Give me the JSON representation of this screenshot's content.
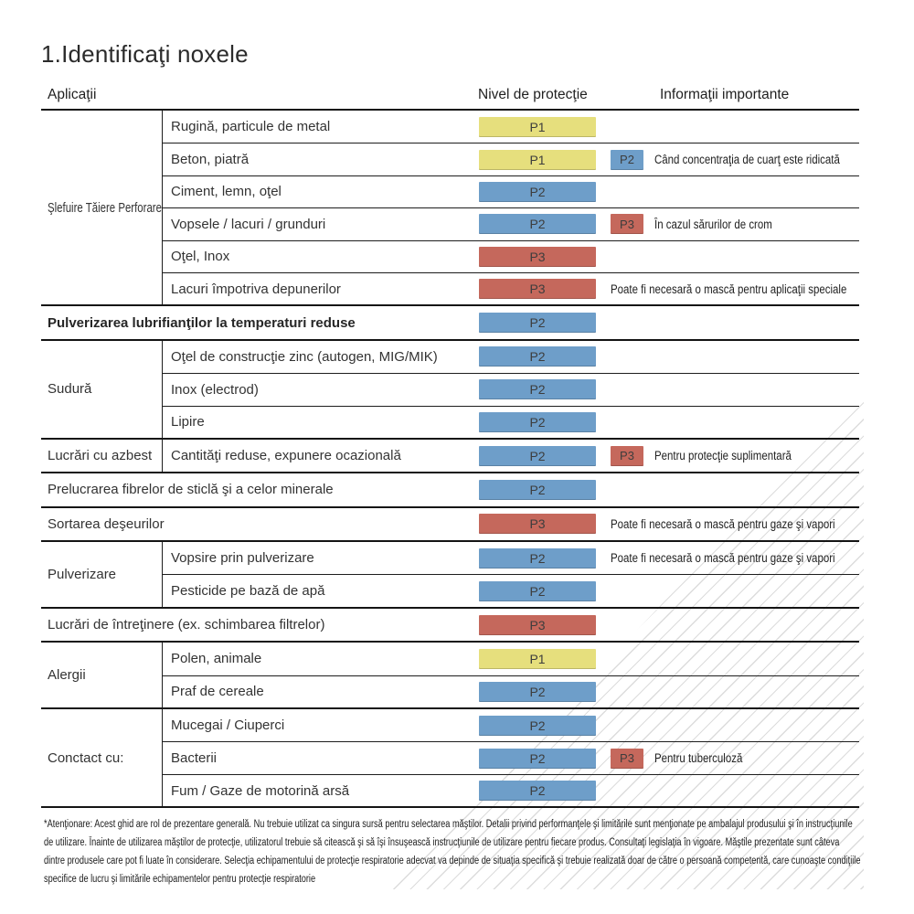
{
  "title": "1.Identificaţi noxele",
  "columns": {
    "applications": "Aplicaţii",
    "protection_level": "Nivel de protecţie",
    "important_info": "Informaţii importante"
  },
  "level_colors": {
    "P1": "#e6df7d",
    "P2": "#6e9ec9",
    "P3": "#c5685c"
  },
  "decor": {
    "hatch_color": "#dcdcdc"
  },
  "groups": [
    {
      "label": "Şlefuire\nTăiere\nPerforare",
      "rows": [
        {
          "item": "Rugină, particule de metal",
          "level": "P1"
        },
        {
          "item": "Beton, piatră",
          "level": "P1",
          "extra_level": "P2",
          "info": "Când concentraţia de cuarţ este ridicată"
        },
        {
          "item": "Ciment, lemn, oţel",
          "level": "P2"
        },
        {
          "item": "Vopsele / lacuri / grunduri",
          "level": "P2",
          "extra_level": "P3",
          "info": "În cazul sărurilor de crom"
        },
        {
          "item": "Oţel, Inox",
          "level": "P3"
        },
        {
          "item": "Lacuri împotriva depunerilor",
          "level": "P3",
          "info": "Poate fi necesară o mască pentru aplicaţii speciale"
        }
      ]
    },
    {
      "label": null,
      "rows": [
        {
          "item": "Pulverizarea lubrifianţilor la temperaturi reduse",
          "level": "P2",
          "bold": true
        }
      ]
    },
    {
      "label": "Sudură",
      "rows": [
        {
          "item": "Oţel de construcţie zinc (autogen, MIG/MIK)",
          "level": "P2"
        },
        {
          "item": "Inox (electrod)",
          "level": "P2"
        },
        {
          "item": "Lipire",
          "level": "P2"
        }
      ]
    },
    {
      "label": "Lucrări cu azbest",
      "rows": [
        {
          "item": "Cantităţi reduse, expunere ocazională",
          "level": "P2",
          "extra_level": "P3",
          "info": "Pentru protecţie suplimentară"
        }
      ]
    },
    {
      "label": null,
      "rows": [
        {
          "item": "Prelucrarea fibrelor de sticlă şi a celor minerale",
          "level": "P2"
        }
      ]
    },
    {
      "label": null,
      "rows": [
        {
          "item": "Sortarea deşeurilor",
          "level": "P3",
          "info": "Poate fi necesară o mască pentru gaze şi vapori"
        }
      ]
    },
    {
      "label": "Pulverizare",
      "rows": [
        {
          "item": "Vopsire prin pulverizare",
          "level": "P2",
          "info": "Poate fi necesară o mască pentru gaze şi vapori"
        },
        {
          "item": "Pesticide pe bază de apă",
          "level": "P2"
        }
      ]
    },
    {
      "label": null,
      "rows": [
        {
          "item": "Lucrări de întreţinere (ex. schimbarea filtrelor)",
          "level": "P3"
        }
      ]
    },
    {
      "label": "Alergii",
      "rows": [
        {
          "item": "Polen, animale",
          "level": "P1"
        },
        {
          "item": "Praf de cereale",
          "level": "P2"
        }
      ]
    },
    {
      "label": "Conctact cu:",
      "rows": [
        {
          "item": "Mucegai / Ciuperci",
          "level": "P2"
        },
        {
          "item": "Bacterii",
          "level": "P2",
          "extra_level": "P3",
          "info": "Pentru tuberculoză"
        },
        {
          "item": "Fum / Gaze de motorină arsă",
          "level": "P2"
        }
      ]
    }
  ],
  "footnote_lines": [
    "*Atenţionare: Acest ghid are rol de prezentare generală. Nu trebuie utilizat ca singura sursă pentru selectarea măştilor. Detalii privind performanţele şi limitările sunt menţionate pe ambalajul produsului şi în instrucţiunile",
    "de utilizare. Înainte de utilizarea măştilor de protecţie, utilizatorul trebuie să citească şi să îşi însuşească instrucţiunile de utilizare pentru fiecare produs. Consultaţi legislaţia în vigoare. Măştile prezentate sunt câteva",
    "dintre produsele care pot fi luate în considerare. Selecţia echipamentului de protecţie respiratorie adecvat va depinde de situaţia specifică şi trebuie realizată doar de către o persoană competentă, care cunoaşte condiţiile",
    "specifice de lucru şi limitările echipamentelor pentru protecţie respiratorie"
  ]
}
